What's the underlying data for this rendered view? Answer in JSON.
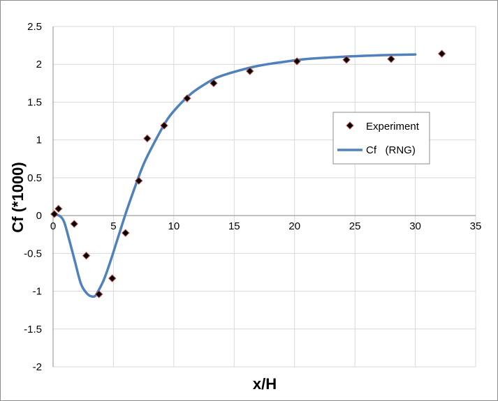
{
  "chart_data": {
    "type": "scatter",
    "xlabel": "x/H",
    "ylabel": "Cf  (*1000)",
    "xlim": [
      0,
      35
    ],
    "ylim": [
      -2,
      2.5
    ],
    "x_ticks": [
      0,
      5,
      10,
      15,
      20,
      25,
      30,
      35
    ],
    "y_ticks": [
      -2,
      -1.5,
      -1,
      -0.5,
      0,
      0.5,
      1,
      1.5,
      2,
      2.5
    ],
    "x_tick_labels": [
      "0",
      "5",
      "10",
      "15",
      "20",
      "25",
      "30",
      "35"
    ],
    "y_tick_labels": [
      "-2",
      "-1.5",
      "-1",
      "-0.5",
      "0",
      "0.5",
      "1",
      "1.5",
      "2",
      "2.5"
    ],
    "grid": true,
    "legend_position": "right",
    "series": [
      {
        "name": "Experiment",
        "kind": "markers",
        "marker": "diamond",
        "color": "#000000",
        "edge_color": "#c0504d",
        "x": [
          0.1,
          0.45,
          1.75,
          2.75,
          3.8,
          4.9,
          6.0,
          7.1,
          7.8,
          9.2,
          11.1,
          13.3,
          16.3,
          20.2,
          24.3,
          28.0,
          32.2
        ],
        "y": [
          0.02,
          0.09,
          -0.11,
          -0.53,
          -1.04,
          -0.83,
          -0.23,
          0.46,
          1.02,
          1.19,
          1.55,
          1.75,
          1.91,
          2.04,
          2.06,
          2.07,
          2.14
        ]
      },
      {
        "name": "Cf   (RNG)",
        "kind": "line",
        "color": "#4f81bd",
        "x": [
          0,
          0.5,
          0.9,
          1.3,
          1.8,
          2.3,
          2.8,
          3.2,
          3.5,
          3.8,
          4.2,
          4.7,
          5.3,
          6.0,
          6.7,
          7.5,
          8.5,
          9.5,
          10.5,
          11.5,
          12.5,
          13.5,
          15,
          17,
          19,
          21,
          24,
          27,
          30
        ],
        "y": [
          0.01,
          0.0,
          -0.08,
          -0.3,
          -0.6,
          -0.9,
          -1.03,
          -1.07,
          -1.06,
          -0.98,
          -0.85,
          -0.63,
          -0.33,
          0.02,
          0.34,
          0.68,
          1.0,
          1.28,
          1.47,
          1.62,
          1.73,
          1.82,
          1.9,
          1.98,
          2.03,
          2.07,
          2.1,
          2.12,
          2.13
        ]
      }
    ]
  }
}
